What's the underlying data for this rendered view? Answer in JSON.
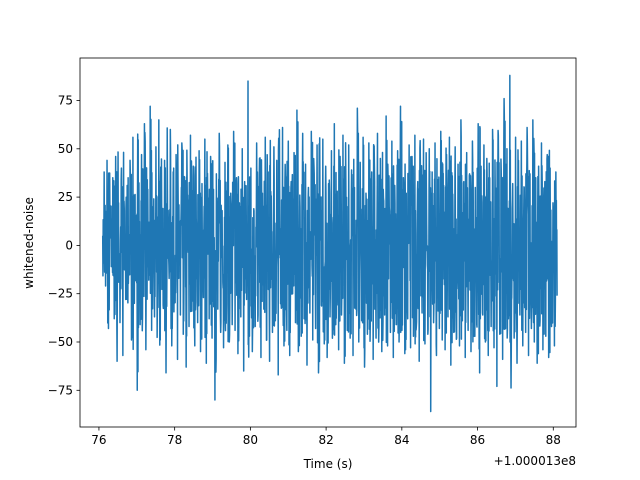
{
  "chart_data": {
    "type": "line",
    "title": "",
    "xlabel": "Time (s)",
    "ylabel": "whitened-noise",
    "x_offset_label": "+1.000013e8",
    "xlim": [
      75.5,
      88.6
    ],
    "ylim": [
      -94,
      97
    ],
    "xticks": [
      76,
      78,
      80,
      82,
      84,
      86,
      88
    ],
    "yticks": [
      -75,
      -50,
      -25,
      0,
      25,
      50,
      75
    ],
    "series_color": "#1f77b4",
    "grid": false,
    "series": [
      {
        "x_range": [
          76.1,
          88.1
        ],
        "values": [
          5,
          38,
          -21,
          44,
          -43,
          17,
          -11,
          35,
          -38,
          46,
          -60,
          22,
          -40,
          40,
          -57,
          18,
          -28,
          31,
          -12,
          44,
          -49,
          56,
          -30,
          10,
          -75,
          30,
          -41,
          47,
          -22,
          63,
          -54,
          34,
          -18,
          72,
          -44,
          20,
          -37,
          51,
          -28,
          65,
          -49,
          16,
          -31,
          44,
          -66,
          28,
          -10,
          60,
          -52,
          38,
          -24,
          47,
          -59,
          21,
          -36,
          53,
          -46,
          33,
          -63,
          26,
          -42,
          57,
          -34,
          41,
          -52,
          14,
          -40,
          49,
          -55,
          32,
          -27,
          55,
          -61,
          24,
          -38,
          46,
          -48,
          29,
          -80,
          37,
          -33,
          58,
          -45,
          18,
          -53,
          43,
          -30,
          52,
          -50,
          27,
          -41,
          59,
          -44,
          35,
          -56,
          22,
          -37,
          50,
          -65,
          31,
          -28,
          85,
          -47,
          40,
          -55,
          19,
          -42,
          53,
          -36,
          45,
          -58,
          27,
          -33,
          56,
          -49,
          38,
          -60,
          23,
          -45,
          51,
          -39,
          44,
          -67,
          29,
          -30,
          61,
          -52,
          36,
          -44,
          54,
          -57,
          33,
          -25,
          48,
          -40,
          70,
          -55,
          26,
          -47,
          58,
          -38,
          42,
          -62,
          30,
          -35,
          59,
          -49,
          37,
          -43,
          52,
          -66,
          24,
          -31,
          55,
          -51,
          41,
          -58,
          32,
          -37,
          49,
          -46,
          63,
          -41,
          28,
          -54,
          46,
          -36,
          57,
          -61,
          34,
          -44,
          52,
          -48,
          39,
          -57,
          30,
          -33,
          71,
          -50,
          43,
          -39,
          56,
          -63,
          27,
          -46,
          53,
          -40,
          38,
          -59,
          33,
          -48,
          58,
          -42,
          45,
          -55,
          29,
          -36,
          67,
          -52,
          36,
          -45,
          54,
          -58,
          31,
          -41,
          49,
          -50,
          72,
          -44,
          35,
          -56,
          27,
          -38,
          52,
          -53,
          46,
          -47,
          57,
          -42,
          33,
          -60,
          40,
          -35,
          55,
          -51,
          29,
          -46,
          50,
          -86,
          38,
          -40,
          53,
          -57,
          34,
          -43,
          59,
          -49,
          31,
          -54,
          47,
          -37,
          56,
          -62,
          36,
          -45,
          51,
          -48,
          42,
          -52,
          65,
          -39,
          33,
          -58,
          48,
          -44,
          37,
          -55,
          54,
          -47,
          30,
          -41,
          63,
          -66,
          41,
          -35,
          52,
          -50,
          45,
          -57,
          35,
          -42,
          60,
          -53,
          28,
          -73,
          57,
          -46,
          39,
          -59,
          76,
          -43,
          50,
          -38,
          88,
          -55,
          32,
          -48,
          56,
          -61,
          44,
          -36,
          54,
          -52,
          30,
          -45,
          61,
          -57,
          37,
          -43,
          65,
          -50,
          35,
          -61,
          41,
          -39,
          53,
          -54,
          30,
          -47,
          47,
          -58,
          40,
          -42,
          22,
          -52,
          38
        ]
      }
    ]
  }
}
